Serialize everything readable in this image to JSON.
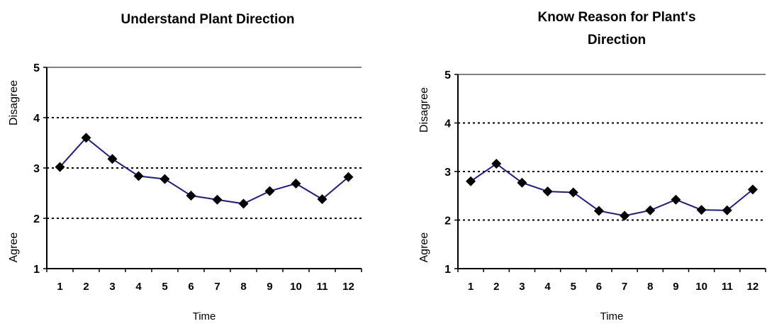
{
  "chart_data": [
    {
      "type": "line",
      "title_lines": [
        "Understand Plant Direction"
      ],
      "xlabel": "Time",
      "ylabel_top": "Disagree",
      "ylabel_bottom": "Agree",
      "categories": [
        "1",
        "2",
        "3",
        "4",
        "5",
        "6",
        "7",
        "8",
        "9",
        "10",
        "11",
        "12"
      ],
      "yticks": [
        "1",
        "2",
        "3",
        "4",
        "5"
      ],
      "ylim": [
        1,
        5
      ],
      "grid": "dotted horizontal",
      "series": [
        {
          "values": [
            3.02,
            3.6,
            3.18,
            2.84,
            2.78,
            2.45,
            2.37,
            2.29,
            2.54,
            2.69,
            2.38,
            2.82
          ]
        }
      ]
    },
    {
      "type": "line",
      "title_lines": [
        "Know Reason for Plant's",
        "Direction"
      ],
      "xlabel": "Time",
      "ylabel_top": "Disagree",
      "ylabel_bottom": "Agree",
      "categories": [
        "1",
        "2",
        "3",
        "4",
        "5",
        "6",
        "7",
        "8",
        "9",
        "10",
        "11",
        "12"
      ],
      "yticks": [
        "1",
        "2",
        "3",
        "4",
        "5"
      ],
      "ylim": [
        1,
        5
      ],
      "grid": "dotted horizontal",
      "series": [
        {
          "values": [
            2.8,
            3.16,
            2.77,
            2.59,
            2.57,
            2.19,
            2.09,
            2.2,
            2.42,
            2.21,
            2.2,
            2.63
          ]
        }
      ]
    }
  ],
  "colors": {
    "line": "#1f1f7a",
    "marker": "#000000",
    "grid": "#000000",
    "axis": "#000000",
    "top_line": "#808080"
  }
}
